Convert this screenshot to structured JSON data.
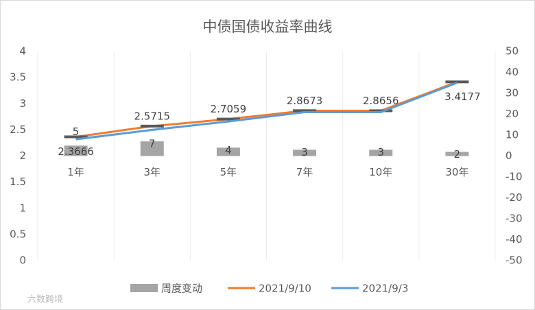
{
  "chart_data": {
    "type": "combo",
    "title": "中债国债收益率曲线",
    "categories": [
      "1年",
      "3年",
      "5年",
      "7年",
      "10年",
      "30年"
    ],
    "series": [
      {
        "name": "周度变动",
        "type": "bar",
        "axis": "y2",
        "color": "#a5a5a5",
        "values": [
          5,
          7,
          4,
          3,
          3,
          2
        ]
      },
      {
        "name": "2021/9/10",
        "type": "line",
        "color": "#ed7d31",
        "values": [
          2.3666,
          2.5715,
          2.7059,
          2.8673,
          2.8656,
          3.4177
        ]
      },
      {
        "name": "2021/9/3",
        "type": "line",
        "color": "#5b9bd5",
        "values": [
          2.32,
          2.5,
          2.66,
          2.84,
          2.84,
          3.4
        ]
      }
    ],
    "ylim": [
      0,
      4
    ],
    "yticks": [
      0,
      0.5,
      1,
      1.5,
      2,
      2.5,
      3,
      3.5,
      4
    ],
    "y2lim": [
      -50,
      50
    ],
    "y2ticks": [
      -50,
      -40,
      -30,
      -20,
      -10,
      0,
      10,
      20,
      30,
      40,
      50
    ],
    "legend": "bottom",
    "watermark": "六数跨境"
  }
}
